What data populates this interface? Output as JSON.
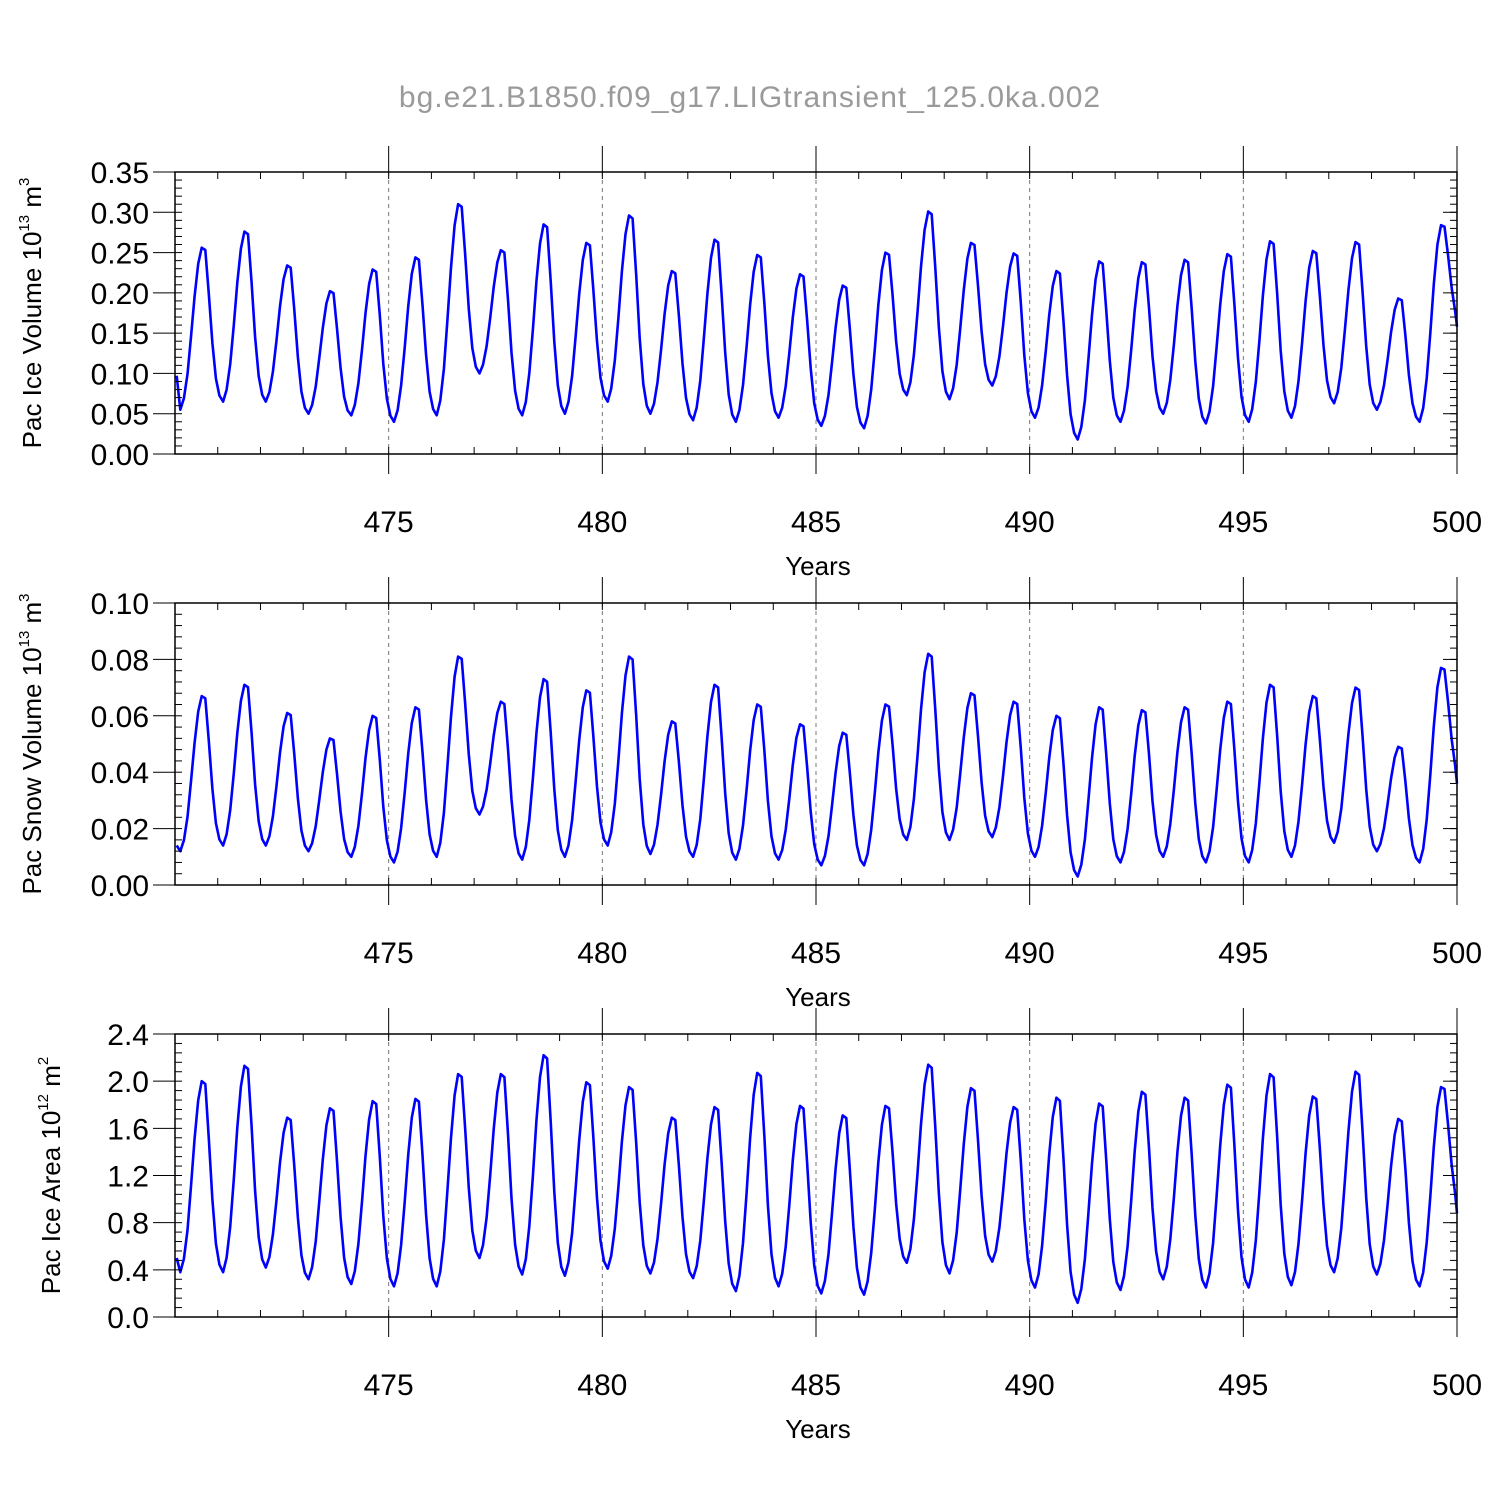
{
  "title": "bg.e21.B1850.f09_g17.LIGtransient_125.0ka.002",
  "colors": {
    "series": "#0000ff",
    "grid": "#777777",
    "title": "#9a9a9a"
  },
  "chart_data": [
    {
      "type": "line",
      "ylabel_main": "Pac Ice Volume 10",
      "ylabel_exp": "13",
      "ylabel_unit": " m",
      "ylabel_unit_exp": "3",
      "xlabel": "Years",
      "xlim": [
        470,
        500
      ],
      "ylim": [
        0,
        0.35
      ],
      "x_ticks": [
        475,
        480,
        485,
        490,
        495,
        500
      ],
      "y_ticks": [
        "0.00",
        "0.05",
        "0.10",
        "0.15",
        "0.20",
        "0.25",
        "0.30",
        "0.35"
      ],
      "y_minor_step": 0.01,
      "grid": "vertical-dashed",
      "series_name": "",
      "annual": {
        "min": [
          0.055,
          0.065,
          0.065,
          0.05,
          0.048,
          0.04,
          0.048,
          0.1,
          0.048,
          0.05,
          0.065,
          0.05,
          0.042,
          0.04,
          0.045,
          0.035,
          0.032,
          0.073,
          0.068,
          0.085,
          0.045,
          0.018,
          0.04,
          0.05,
          0.038,
          0.04,
          0.045,
          0.063,
          0.055,
          0.04
        ],
        "max": [
          0.256,
          0.276,
          0.234,
          0.202,
          0.229,
          0.244,
          0.31,
          0.253,
          0.285,
          0.262,
          0.296,
          0.227,
          0.266,
          0.247,
          0.223,
          0.209,
          0.25,
          0.301,
          0.262,
          0.249,
          0.227,
          0.239,
          0.238,
          0.241,
          0.248,
          0.264,
          0.252,
          0.263,
          0.193,
          0.284
        ]
      },
      "start_value": 0.097,
      "end_value": 0.158
    },
    {
      "type": "line",
      "ylabel_main": "Pac Snow Volume 10",
      "ylabel_exp": "13",
      "ylabel_unit": " m",
      "ylabel_unit_exp": "3",
      "xlabel": "Years",
      "xlim": [
        470,
        500
      ],
      "ylim": [
        0,
        0.1
      ],
      "x_ticks": [
        475,
        480,
        485,
        490,
        495,
        500
      ],
      "y_ticks": [
        "0.00",
        "0.02",
        "0.04",
        "0.06",
        "0.08",
        "0.10"
      ],
      "y_minor_step": 0.004,
      "grid": "vertical-dashed",
      "series_name": "",
      "annual": {
        "min": [
          0.012,
          0.014,
          0.014,
          0.012,
          0.01,
          0.008,
          0.01,
          0.025,
          0.009,
          0.01,
          0.014,
          0.011,
          0.01,
          0.009,
          0.009,
          0.007,
          0.007,
          0.016,
          0.016,
          0.017,
          0.01,
          0.003,
          0.008,
          0.01,
          0.008,
          0.008,
          0.01,
          0.015,
          0.012,
          0.008
        ],
        "max": [
          0.067,
          0.071,
          0.061,
          0.052,
          0.06,
          0.063,
          0.081,
          0.065,
          0.073,
          0.069,
          0.081,
          0.058,
          0.071,
          0.064,
          0.057,
          0.054,
          0.064,
          0.082,
          0.068,
          0.065,
          0.06,
          0.063,
          0.062,
          0.063,
          0.065,
          0.071,
          0.067,
          0.07,
          0.049,
          0.077
        ]
      },
      "start_value": 0.014,
      "end_value": 0.036
    },
    {
      "type": "line",
      "ylabel_main": "Pac Ice Area 10",
      "ylabel_exp": "12",
      "ylabel_unit": " m",
      "ylabel_unit_exp": "2",
      "xlabel": "Years",
      "xlim": [
        470,
        500
      ],
      "ylim": [
        0,
        2.4
      ],
      "x_ticks": [
        475,
        480,
        485,
        490,
        495,
        500
      ],
      "y_ticks": [
        "0.0",
        "0.4",
        "0.8",
        "1.2",
        "1.6",
        "2.0",
        "2.4"
      ],
      "y_minor_step": 0.08,
      "grid": "vertical-dashed",
      "series_name": "",
      "annual": {
        "min": [
          0.38,
          0.38,
          0.42,
          0.32,
          0.28,
          0.26,
          0.26,
          0.5,
          0.36,
          0.35,
          0.41,
          0.37,
          0.33,
          0.22,
          0.26,
          0.2,
          0.19,
          0.46,
          0.37,
          0.47,
          0.25,
          0.12,
          0.23,
          0.32,
          0.25,
          0.25,
          0.27,
          0.38,
          0.36,
          0.26
        ],
        "max": [
          2.0,
          2.13,
          1.69,
          1.77,
          1.83,
          1.85,
          2.06,
          2.06,
          2.22,
          1.99,
          1.95,
          1.69,
          1.78,
          2.07,
          1.79,
          1.71,
          1.79,
          2.14,
          1.94,
          1.78,
          1.86,
          1.81,
          1.91,
          1.86,
          1.97,
          2.06,
          1.87,
          2.08,
          1.68,
          1.95
        ]
      },
      "start_value": 0.5,
      "end_value": 0.88
    }
  ]
}
